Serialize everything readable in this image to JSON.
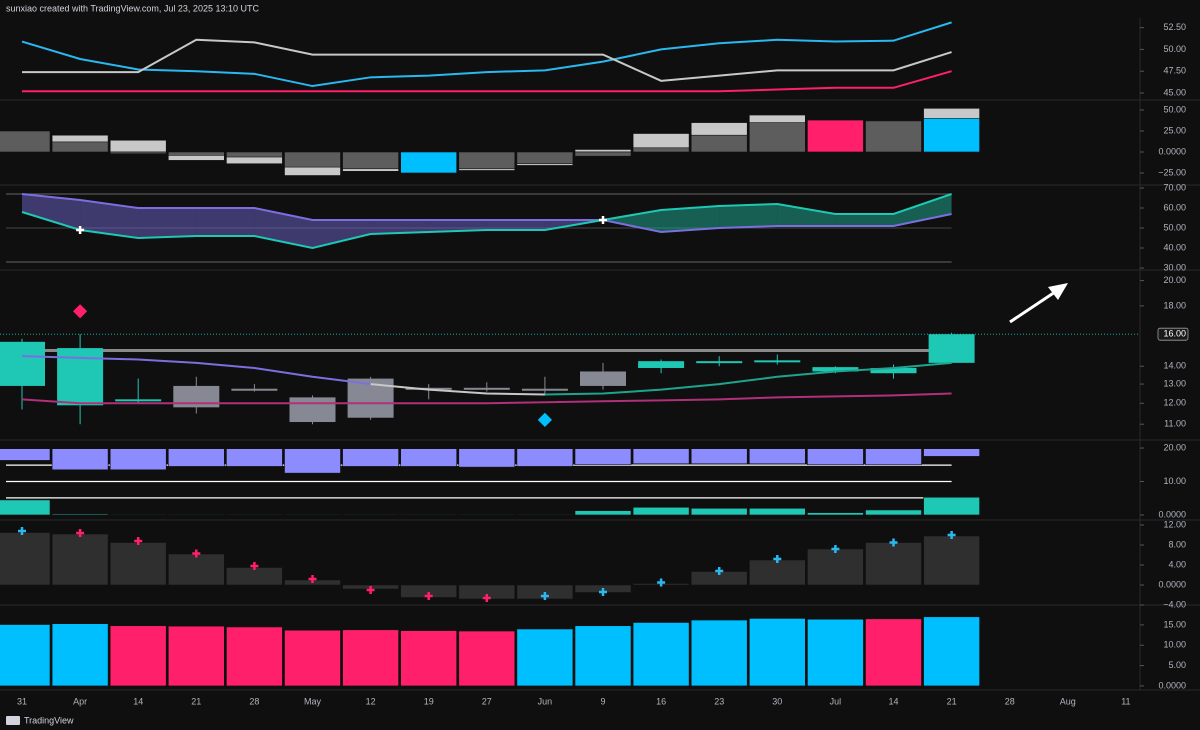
{
  "header": "sunxiao created with TradingView.com, Jul 23, 2025 13:10 UTC",
  "brand": "TradingView",
  "time_axis": {
    "categories": [
      "31",
      "Apr",
      "14",
      "21",
      "28",
      "May",
      "12",
      "19",
      "27",
      "Jun",
      "9",
      "16",
      "23",
      "30",
      "Jul",
      "14",
      "21",
      "28",
      "Aug",
      "11"
    ]
  },
  "chart_data": [
    {
      "type": "line",
      "ylim": [
        44.2,
        53.6
      ],
      "yticks": [
        {
          "value": 52.5,
          "label": "52.50"
        },
        {
          "value": 50,
          "label": "50.00"
        },
        {
          "value": 47.5,
          "label": "47.50"
        },
        {
          "value": 45,
          "label": "45.00"
        }
      ],
      "series": [
        {
          "style": "line",
          "color": "#2ab8f0",
          "values": [
            50.9,
            48.9,
            47.7,
            47.5,
            47.2,
            45.8,
            46.8,
            47.0,
            47.4,
            47.6,
            48.6,
            50.0,
            50.7,
            51.1,
            50.9,
            51.0,
            53.1
          ]
        },
        {
          "style": "line",
          "color": "#c8c8c8",
          "values": [
            47.4,
            47.4,
            47.4,
            51.1,
            50.8,
            49.4,
            49.4,
            49.4,
            49.4,
            49.4,
            49.4,
            46.4,
            47.0,
            47.6,
            47.6,
            47.6,
            49.7
          ]
        },
        {
          "style": "line",
          "color": "#ff1f6b",
          "values": [
            45.2,
            45.2,
            45.2,
            45.2,
            45.2,
            45.2,
            45.2,
            45.2,
            45.2,
            45.2,
            45.2,
            45.2,
            45.2,
            45.4,
            45.6,
            45.6,
            47.5
          ]
        }
      ]
    },
    {
      "type": "bar",
      "ylim": [
        -39.3,
        61.9
      ],
      "yticks": [
        {
          "value": 50,
          "label": "50.00"
        },
        {
          "value": 25,
          "label": "25.00"
        },
        {
          "value": 0,
          "label": "0.0000"
        },
        {
          "value": -25,
          "label": "−25.00"
        }
      ],
      "series": [
        {
          "style": "bar",
          "color": "#c8c8c8",
          "values": [
            18,
            20,
            14,
            -10,
            -14,
            -28,
            -23,
            -25,
            -22,
            -16,
            3,
            22,
            35,
            44,
            38,
            37,
            52
          ]
        },
        {
          "style": "bar",
          "color": "#5d5d5d",
          "colors": [
            "#5d5d5d",
            "#5d5d5d",
            "#5d5d5d",
            "#5d5d5d",
            "#5d5d5d",
            "#5d5d5d",
            "#5d5d5d",
            "#00bfff",
            "#5d5d5d",
            "#5d5d5d",
            "#5d5d5d",
            "#5d5d5d",
            "#5d5d5d",
            "#5d5d5d",
            "#ff1f6b",
            "#5d5d5d",
            "#00bfff"
          ],
          "values": [
            25,
            12,
            -2,
            -4,
            -6,
            -18,
            -20,
            -25,
            -20,
            -14,
            -5,
            5,
            20,
            35,
            38,
            37,
            40
          ]
        }
      ]
    },
    {
      "type": "line",
      "ylim": [
        29,
        71.5
      ],
      "yticks": [
        {
          "value": 70,
          "label": "70.00"
        },
        {
          "value": 60,
          "label": "60.00"
        },
        {
          "value": 50,
          "label": "50.00"
        },
        {
          "value": 40,
          "label": "40.00"
        },
        {
          "value": 30,
          "label": "30.00"
        }
      ],
      "hlines": [
        {
          "value": 67,
          "color": "#555555"
        },
        {
          "value": 50,
          "color": "#3a3a3a"
        },
        {
          "value": 33,
          "color": "#555555"
        }
      ],
      "fill_colors": [
        "rgba(123,111,224,0.45)",
        "rgba(31,175,150,0.5)"
      ],
      "series": [
        {
          "style": "line",
          "color": "#7b6fe0",
          "values": [
            67,
            64,
            60,
            60,
            60,
            54,
            54,
            54,
            54,
            54,
            54,
            48,
            50,
            51,
            51,
            51,
            57
          ]
        },
        {
          "style": "line",
          "color": "#1ec8b4",
          "values": [
            58,
            49,
            45,
            46,
            46,
            40,
            47,
            48,
            49,
            49,
            54,
            59,
            61,
            62,
            57,
            57,
            67
          ]
        },
        {
          "style": "cross",
          "color": "#ffffff",
          "values": [
            null,
            49,
            null,
            null,
            null,
            null,
            null,
            null,
            null,
            null,
            54,
            null,
            null,
            null,
            null,
            null,
            null
          ]
        }
      ]
    },
    {
      "type": "candlestick",
      "log": true,
      "ylim": [
        10.3,
        20.9
      ],
      "yticks": [
        {
          "value": 20,
          "label": "20.00"
        },
        {
          "value": 18,
          "label": "18.00"
        },
        {
          "value": 14,
          "label": "14.00"
        },
        {
          "value": 13,
          "label": "13.00"
        },
        {
          "value": 12,
          "label": "12.00"
        },
        {
          "value": 11,
          "label": "11.00"
        }
      ],
      "last_price": {
        "value": 16,
        "label": "16.00"
      },
      "hlines": [
        {
          "value": 14.95,
          "color": "#8a8a8a"
        }
      ],
      "candles": {
        "open": [
          12.9,
          11.9,
          12.1,
          12.9,
          12.75,
          12.3,
          13.3,
          12.8,
          12.8,
          12.75,
          12.9,
          13.9,
          14.2,
          14.25,
          13.7,
          13.6,
          14.2
        ],
        "high": [
          15.7,
          16.0,
          13.3,
          13.4,
          13.0,
          12.4,
          13.4,
          13.0,
          13.1,
          13.4,
          14.2,
          14.4,
          14.6,
          14.7,
          14.0,
          14.1,
          16.1
        ],
        "low": [
          11.7,
          11.0,
          12.0,
          11.5,
          12.6,
          11.0,
          11.2,
          12.2,
          12.6,
          12.4,
          12.7,
          13.6,
          14.0,
          14.1,
          13.6,
          13.3,
          14.2
        ],
        "close": [
          15.5,
          15.1,
          12.2,
          11.8,
          12.7,
          11.1,
          11.3,
          12.75,
          12.75,
          12.7,
          13.7,
          14.3,
          14.3,
          14.35,
          13.95,
          13.9,
          16.0
        ],
        "colors": [
          "#1ec8b4",
          "#1ec8b4",
          "#1ec8b4",
          "#868993",
          "#868993",
          "#868993",
          "#868993",
          "#868993",
          "#868993",
          "#868993",
          "#868993",
          "#1ec8b4",
          "#1ec8b4",
          "#1ec8b4",
          "#1ec8b4",
          "#1ec8b4",
          "#1ec8b4"
        ]
      },
      "series": [
        {
          "style": "line",
          "color": "#7b6fe0",
          "values": [
            14.6,
            14.5,
            14.4,
            14.2,
            13.9,
            13.4,
            13.0,
            null,
            null,
            null,
            null,
            null,
            null,
            null,
            null,
            null,
            null
          ]
        },
        {
          "style": "line",
          "color": "#c8c8c8",
          "values": [
            null,
            null,
            null,
            null,
            null,
            null,
            13.0,
            12.7,
            12.5,
            12.45,
            null,
            null,
            null,
            null,
            null,
            null,
            null
          ]
        },
        {
          "style": "line",
          "color": "#1fa38f",
          "values": [
            null,
            null,
            null,
            null,
            null,
            null,
            null,
            null,
            null,
            12.45,
            12.5,
            12.7,
            13.0,
            13.4,
            13.7,
            13.9,
            14.2
          ]
        },
        {
          "style": "line",
          "color": "#b0307a",
          "values": [
            12.2,
            12.0,
            12.0,
            12.0,
            12.0,
            12.0,
            12.0,
            12.0,
            12.0,
            12.05,
            12.1,
            12.15,
            12.2,
            12.3,
            12.35,
            12.4,
            12.5
          ]
        },
        {
          "style": "diamond",
          "color": "#ff1f6b",
          "values": [
            null,
            17.6,
            null,
            null,
            null,
            null,
            null,
            null,
            null,
            null,
            null,
            null,
            null,
            null,
            null,
            null,
            null
          ]
        },
        {
          "style": "diamond",
          "color": "#00bfff",
          "values": [
            null,
            null,
            null,
            null,
            null,
            null,
            null,
            null,
            null,
            11.2,
            null,
            null,
            null,
            null,
            null,
            null,
            null
          ]
        }
      ]
    },
    {
      "type": "bar",
      "ylim": [
        -1.5,
        22.4
      ],
      "yticks": [
        {
          "value": 20,
          "label": "20.00"
        },
        {
          "value": 10,
          "label": "10.00"
        },
        {
          "value": 0,
          "label": "0.0000"
        }
      ],
      "series": [
        {
          "style": "floating",
          "color": "#8c8cff",
          "tops": [
            19.8,
            19.8,
            19.8,
            19.8,
            19.8,
            19.8,
            19.8,
            19.8,
            19.8,
            19.8,
            19.8,
            19.8,
            19.8,
            19.8,
            19.8,
            19.8,
            19.8
          ],
          "values": [
            16.3,
            13.5,
            13.5,
            14.5,
            14.5,
            12.5,
            14.5,
            14.5,
            14.3,
            14.5,
            15,
            15.3,
            15.3,
            15.3,
            15,
            15,
            17.5
          ]
        },
        {
          "style": "bar",
          "color": "#1ec8b4",
          "values": [
            4.5,
            0.3,
            0.2,
            0.2,
            0.2,
            0.2,
            0.2,
            0.2,
            0.2,
            0.2,
            1.3,
            2.3,
            2,
            2,
            0.7,
            1.5,
            5.3
          ]
        }
      ],
      "hlines": [
        {
          "value": 14.9,
          "color": "#ffffff"
        },
        {
          "value": 10,
          "color": "#ffffff"
        },
        {
          "value": 5.1,
          "color": "#ffffff"
        }
      ]
    },
    {
      "type": "bar",
      "ylim": [
        -4,
        13
      ],
      "yticks": [
        {
          "value": 12,
          "label": "12.00"
        },
        {
          "value": 8,
          "label": "8.00"
        },
        {
          "value": 4,
          "label": "4.00"
        },
        {
          "value": 0,
          "label": "0.0000"
        },
        {
          "value": -4,
          "label": "−4.00"
        }
      ],
      "series": [
        {
          "style": "bar",
          "color": "#2f2f2f",
          "values": [
            10.5,
            10.2,
            8.5,
            6.2,
            3.5,
            1,
            -0.8,
            -2.5,
            -2.8,
            -2.8,
            -1.5,
            0.3,
            2.7,
            5,
            7.2,
            8.5,
            9.8
          ]
        },
        {
          "style": "cross",
          "color": "#ff1f6b",
          "colors": [
            "#2ab8f0",
            "#ff1f6b",
            "#ff1f6b",
            "#ff1f6b",
            "#ff1f6b",
            "#ff1f6b",
            "#ff1f6b",
            "#ff1f6b",
            "#ff1f6b",
            "#2ab8f0",
            "#2ab8f0",
            "#2ab8f0",
            "#2ab8f0",
            "#2ab8f0",
            "#2ab8f0",
            "#2ab8f0",
            "#2ab8f0"
          ],
          "values": [
            10.8,
            10.4,
            8.8,
            6.3,
            3.8,
            1.2,
            -1.0,
            -2.2,
            -2.6,
            -2.2,
            -1.4,
            0.5,
            2.8,
            5.2,
            7.2,
            8.5,
            10
          ]
        }
      ]
    },
    {
      "type": "bar",
      "ylim": [
        -1,
        19.9
      ],
      "yticks": [
        {
          "value": 15,
          "label": "15.00"
        },
        {
          "value": 10,
          "label": "10.00"
        },
        {
          "value": 5,
          "label": "5.00"
        },
        {
          "value": 0,
          "label": "0.0000"
        }
      ],
      "series": [
        {
          "style": "bar",
          "color": "#00bfff",
          "colors": [
            "#00bfff",
            "#00bfff",
            "#ff1f6b",
            "#ff1f6b",
            "#ff1f6b",
            "#ff1f6b",
            "#ff1f6b",
            "#ff1f6b",
            "#ff1f6b",
            "#00bfff",
            "#00bfff",
            "#00bfff",
            "#00bfff",
            "#00bfff",
            "#00bfff",
            "#ff1f6b",
            "#00bfff"
          ],
          "values": [
            15.1,
            15.3,
            14.8,
            14.7,
            14.5,
            13.7,
            13.8,
            13.6,
            13.5,
            14,
            14.8,
            15.6,
            16.2,
            16.6,
            16.4,
            16.5,
            17
          ]
        }
      ]
    }
  ]
}
